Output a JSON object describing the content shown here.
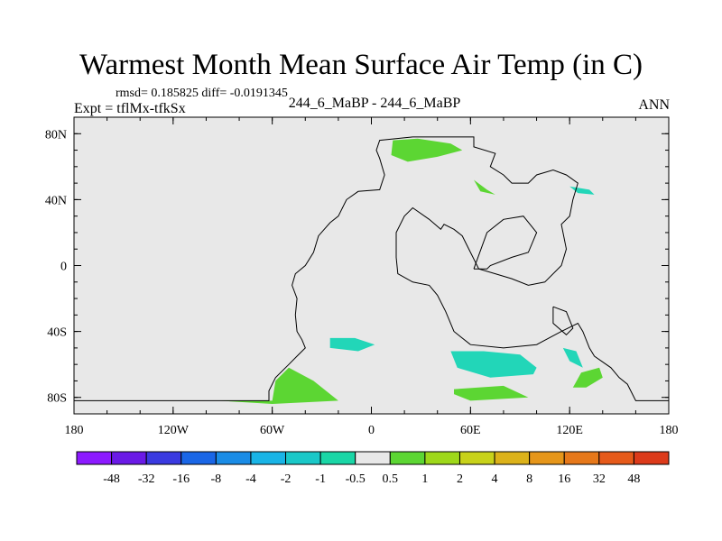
{
  "title": "Warmest Month Mean Surface Air Temp (in C)",
  "stats_line": "rmsd= 0.185825 diff= -0.0191345",
  "expt_label": "Expt = tflMx-tfkSx",
  "center_label": "244_6_MaBP - 244_6_MaBP",
  "right_label": "ANN",
  "map": {
    "lon_range": [
      -180,
      180
    ],
    "lat_range": [
      -90,
      90
    ],
    "background_color": "#e8e8e8",
    "lat_ticks": [
      {
        "value": 80,
        "label": "80N"
      },
      {
        "value": 40,
        "label": "40N"
      },
      {
        "value": 0,
        "label": "0"
      },
      {
        "value": -40,
        "label": "40S"
      },
      {
        "value": -80,
        "label": "80S"
      }
    ],
    "lon_ticks": [
      {
        "value": -180,
        "label": "180"
      },
      {
        "value": -120,
        "label": "120W"
      },
      {
        "value": -60,
        "label": "60W"
      },
      {
        "value": 0,
        "label": "0"
      },
      {
        "value": 60,
        "label": "60E"
      },
      {
        "value": 120,
        "label": "120E"
      },
      {
        "value": 180,
        "label": "180"
      }
    ],
    "coastlines": [
      [
        [
          -180,
          -82
        ],
        [
          -62,
          -82
        ],
        [
          -62,
          -76
        ],
        [
          -58,
          -68
        ],
        [
          -50,
          -60
        ],
        [
          -45,
          -55
        ],
        [
          -40,
          -50
        ],
        [
          -42,
          -45
        ],
        [
          -45,
          -40
        ],
        [
          -46,
          -30
        ],
        [
          -45,
          -20
        ],
        [
          -48,
          -12
        ],
        [
          -46,
          -5
        ],
        [
          -40,
          0
        ],
        [
          -35,
          8
        ],
        [
          -32,
          18
        ],
        [
          -25,
          26
        ],
        [
          -20,
          30
        ],
        [
          -15,
          40
        ],
        [
          -8,
          45
        ],
        [
          5,
          46
        ],
        [
          8,
          55
        ],
        [
          5,
          65
        ],
        [
          3,
          70
        ],
        [
          5,
          76
        ],
        [
          25,
          78
        ],
        [
          62,
          78
        ],
        [
          62,
          72
        ],
        [
          75,
          68
        ],
        [
          72,
          60
        ],
        [
          80,
          55
        ],
        [
          85,
          50
        ],
        [
          95,
          50
        ],
        [
          100,
          55
        ],
        [
          110,
          58
        ],
        [
          118,
          55
        ],
        [
          125,
          50
        ],
        [
          122,
          40
        ],
        [
          120,
          30
        ],
        [
          115,
          25
        ],
        [
          118,
          10
        ],
        [
          115,
          0
        ],
        [
          105,
          -10
        ],
        [
          95,
          -12
        ],
        [
          85,
          -8
        ],
        [
          75,
          -5
        ],
        [
          65,
          -2
        ],
        [
          60,
          8
        ],
        [
          55,
          18
        ],
        [
          50,
          22
        ],
        [
          44,
          25
        ],
        [
          42,
          22
        ],
        [
          35,
          28
        ],
        [
          25,
          35
        ],
        [
          20,
          30
        ],
        [
          15,
          20
        ],
        [
          15,
          5
        ],
        [
          16,
          -5
        ],
        [
          25,
          -10
        ],
        [
          35,
          -12
        ],
        [
          40,
          -18
        ],
        [
          45,
          -28
        ],
        [
          50,
          -40
        ],
        [
          60,
          -48
        ],
        [
          80,
          -50
        ],
        [
          100,
          -48
        ],
        [
          115,
          -40
        ],
        [
          125,
          -35
        ],
        [
          128,
          -40
        ],
        [
          132,
          -50
        ],
        [
          135,
          -55
        ],
        [
          145,
          -62
        ],
        [
          150,
          -68
        ],
        [
          155,
          -72
        ],
        [
          160,
          -82
        ],
        [
          180,
          -82
        ]
      ],
      [
        [
          62,
          -2
        ],
        [
          70,
          -2
        ],
        [
          72,
          0
        ],
        [
          85,
          5
        ],
        [
          95,
          8
        ],
        [
          100,
          20
        ],
        [
          92,
          30
        ],
        [
          80,
          28
        ],
        [
          70,
          20
        ],
        [
          62,
          -2
        ]
      ],
      [
        [
          110,
          -25
        ],
        [
          118,
          -28
        ],
        [
          122,
          -38
        ],
        [
          118,
          -42
        ],
        [
          110,
          -35
        ],
        [
          110,
          -25
        ]
      ]
    ],
    "contours": [
      {
        "level": "0.5-1",
        "color": "#5cd633",
        "points": [
          [
            -92,
            -82
          ],
          [
            -60,
            -82
          ],
          [
            -58,
            -70
          ],
          [
            -50,
            -62
          ],
          [
            -35,
            -70
          ],
          [
            -20,
            -82
          ],
          [
            -60,
            -84
          ],
          [
            -92,
            -82
          ]
        ]
      },
      {
        "level": "0.5-1",
        "color": "#5cd633",
        "points": [
          [
            13,
            76
          ],
          [
            28,
            77
          ],
          [
            48,
            74
          ],
          [
            55,
            70
          ],
          [
            40,
            66
          ],
          [
            22,
            63
          ],
          [
            12,
            67
          ],
          [
            13,
            76
          ]
        ]
      },
      {
        "level": "0.5-1",
        "color": "#5cd633",
        "points": [
          [
            50,
            -75
          ],
          [
            80,
            -73
          ],
          [
            95,
            -80
          ],
          [
            60,
            -82
          ],
          [
            50,
            -78
          ],
          [
            50,
            -75
          ]
        ]
      },
      {
        "level": "-0.5-0.5",
        "color": "#22d6b8",
        "points": [
          [
            48,
            -52
          ],
          [
            68,
            -52
          ],
          [
            90,
            -54
          ],
          [
            100,
            -62
          ],
          [
            98,
            -66
          ],
          [
            72,
            -68
          ],
          [
            52,
            -62
          ],
          [
            48,
            -52
          ]
        ]
      },
      {
        "level": "-0.5-0.5",
        "color": "#22d6b8",
        "points": [
          [
            -25,
            -44
          ],
          [
            -10,
            -44
          ],
          [
            2,
            -48
          ],
          [
            -8,
            -52
          ],
          [
            -25,
            -50
          ],
          [
            -25,
            -44
          ]
        ]
      },
      {
        "level": "0.5-1",
        "color": "#5cd633",
        "points": [
          [
            127,
            -65
          ],
          [
            138,
            -62
          ],
          [
            140,
            -68
          ],
          [
            130,
            -74
          ],
          [
            122,
            -74
          ],
          [
            127,
            -65
          ]
        ]
      },
      {
        "level": "0.5-1",
        "color": "#5cd633",
        "points": [
          [
            62,
            52
          ],
          [
            70,
            46
          ],
          [
            75,
            43
          ],
          [
            66,
            45
          ],
          [
            62,
            52
          ]
        ]
      },
      {
        "level": "-0.5-0.5",
        "color": "#22d6b8",
        "points": [
          [
            120,
            48
          ],
          [
            132,
            46
          ],
          [
            135,
            43
          ],
          [
            125,
            44
          ],
          [
            120,
            48
          ]
        ]
      },
      {
        "level": "-0.5-0.5",
        "color": "#22d6b8",
        "points": [
          [
            116,
            -50
          ],
          [
            124,
            -52
          ],
          [
            128,
            -62
          ],
          [
            120,
            -58
          ],
          [
            116,
            -50
          ]
        ]
      }
    ]
  },
  "colorbar": {
    "labels": [
      "-48",
      "-32",
      "-16",
      "-8",
      "-4",
      "-2",
      "-1",
      "-0.5",
      "0.5",
      "1",
      "2",
      "4",
      "8",
      "16",
      "32",
      "48"
    ],
    "colors": [
      "#8c1aff",
      "#6a1ae6",
      "#3a3ae0",
      "#1a66e6",
      "#1a8ce6",
      "#19b4e6",
      "#1ac8c8",
      "#1ad6a6",
      "#e8e8e8",
      "#5cd633",
      "#9ed81a",
      "#c8d21a",
      "#dcb21a",
      "#e6961a",
      "#e6781a",
      "#e65a1a",
      "#dc3a1a"
    ]
  }
}
